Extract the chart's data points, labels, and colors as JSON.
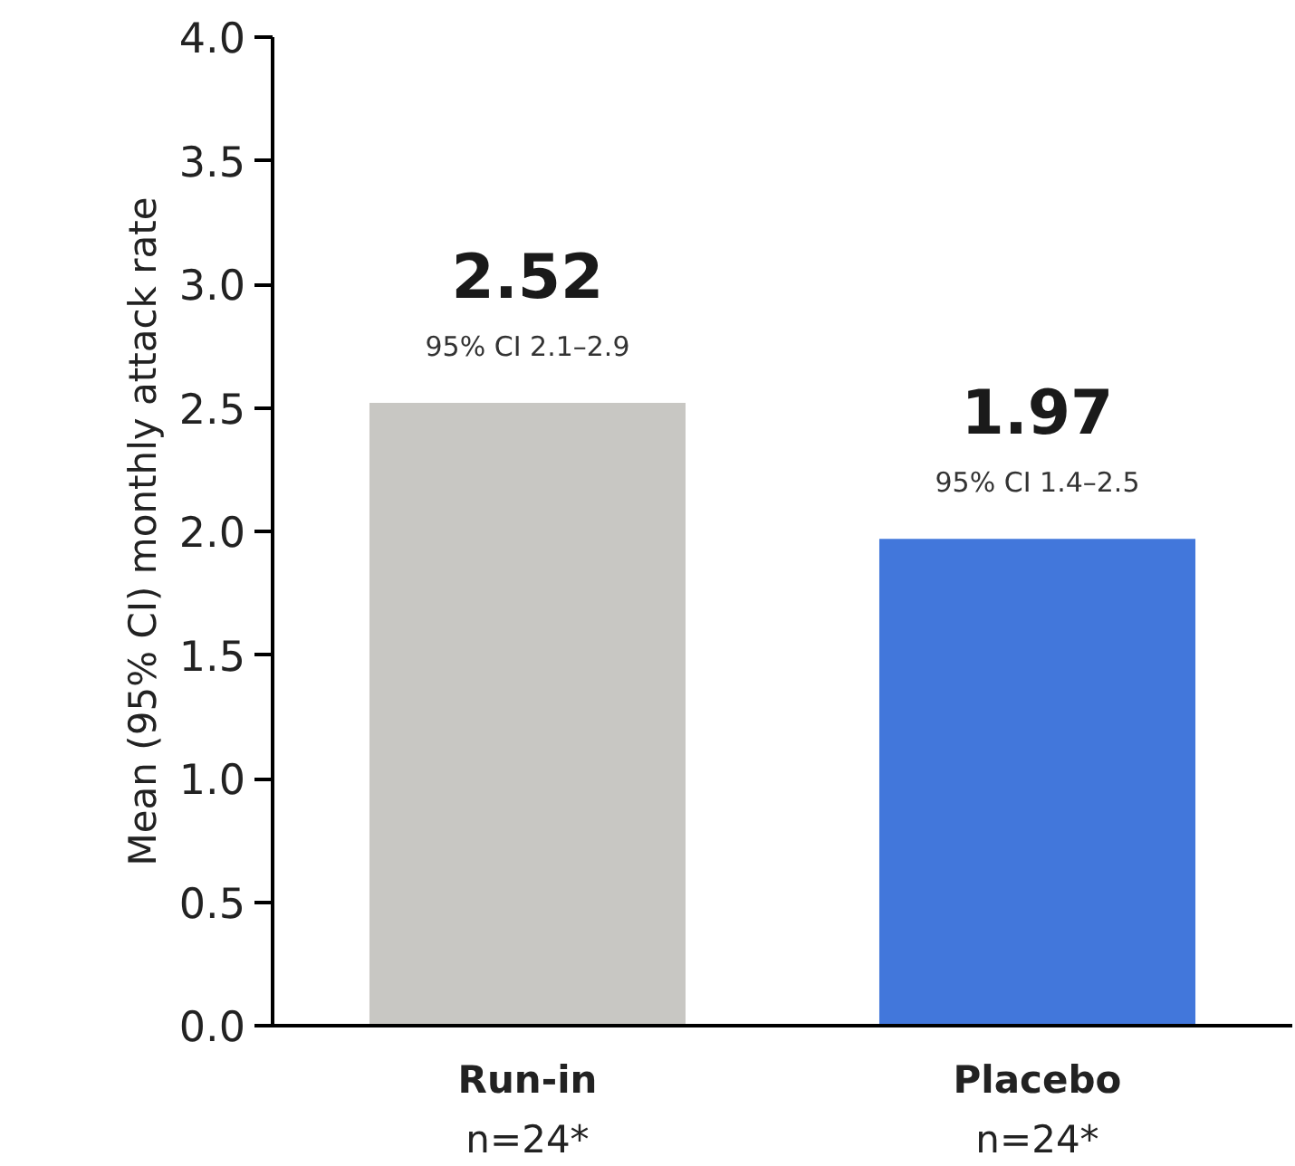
{
  "chart_data": {
    "type": "bar",
    "ylabel": "Mean (95% CI) monthly attack rate",
    "categories": [
      "Run-in",
      "Placebo"
    ],
    "values": [
      2.52,
      1.97
    ],
    "colors": [
      "#c8c7c3",
      "#4277db"
    ],
    "value_labels": [
      "2.52",
      "1.97"
    ],
    "annotations": [
      {
        "text": "95% CI 2.1–2.9",
        "x": "Run-in",
        "y": 2.52
      },
      {
        "text": "95% CI 1.4–2.5",
        "x": "Placebo",
        "y": 1.97
      },
      "n=24*",
      "n=24*"
    ],
    "ylim": [
      0,
      4.0
    ],
    "yticks": [
      {
        "value": 0,
        "label": "0.0"
      },
      {
        "value": 0.5,
        "label": "0.5"
      },
      {
        "value": 1,
        "label": "1.0"
      },
      {
        "value": 1.5,
        "label": "1.5"
      },
      {
        "value": 2,
        "label": "2.0"
      },
      {
        "value": 2.5,
        "label": "2.5"
      },
      {
        "value": 3,
        "label": "3.0"
      },
      {
        "value": 3.5,
        "label": "3.5"
      },
      {
        "value": 4,
        "label": "4.0"
      }
    ],
    "grid": false
  }
}
